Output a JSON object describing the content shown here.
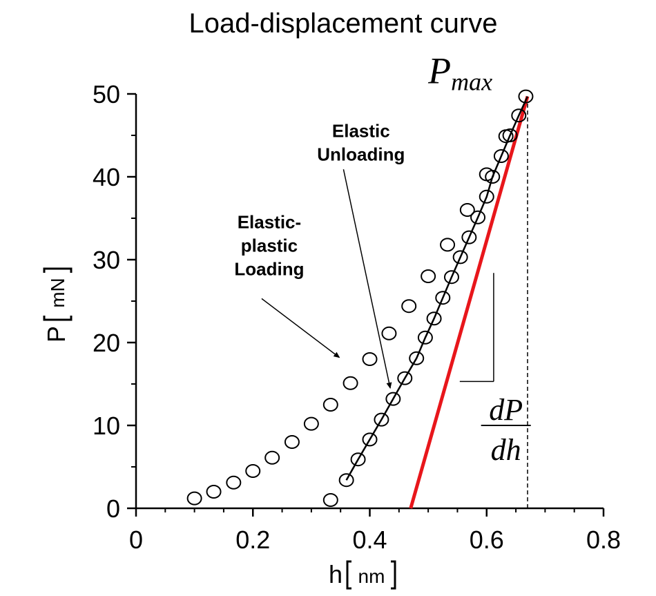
{
  "chart_data": {
    "type": "scatter",
    "title": "Load-displacement curve",
    "xlabel": {
      "symbol": "h",
      "unit": "nm"
    },
    "ylabel": {
      "symbol": "P",
      "unit": "mN"
    },
    "xlim": [
      0,
      0.8
    ],
    "ylim": [
      0,
      50
    ],
    "xticks": [
      0,
      0.2,
      0.4,
      0.6,
      0.8
    ],
    "xtick_labels": [
      "0",
      "0.2",
      "0.4",
      "0.6",
      "0.8"
    ],
    "yticks": [
      0,
      10,
      20,
      30,
      40,
      50
    ],
    "ytick_labels": [
      "0",
      "10",
      "20",
      "30",
      "40",
      "50"
    ],
    "grid": false,
    "series": [
      {
        "marker": "open-circle",
        "points": [
          [
            0.1,
            1.2
          ],
          [
            0.133,
            2.0
          ],
          [
            0.167,
            3.1
          ],
          [
            0.2,
            4.5
          ],
          [
            0.233,
            6.1
          ],
          [
            0.267,
            8.0
          ],
          [
            0.3,
            10.2
          ],
          [
            0.333,
            12.5
          ],
          [
            0.367,
            15.1
          ],
          [
            0.4,
            18.0
          ],
          [
            0.433,
            21.1
          ],
          [
            0.467,
            24.4
          ],
          [
            0.5,
            28.0
          ],
          [
            0.533,
            31.8
          ],
          [
            0.567,
            36.0
          ],
          [
            0.6,
            40.3
          ],
          [
            0.633,
            44.9
          ],
          [
            0.667,
            49.7
          ],
          [
            0.333,
            1.0
          ],
          [
            0.36,
            3.4
          ],
          [
            0.38,
            5.9
          ],
          [
            0.4,
            8.3
          ],
          [
            0.42,
            10.7
          ],
          [
            0.44,
            13.2
          ],
          [
            0.46,
            15.7
          ],
          [
            0.48,
            18.1
          ],
          [
            0.495,
            20.6
          ],
          [
            0.51,
            22.9
          ],
          [
            0.525,
            25.4
          ],
          [
            0.54,
            27.9
          ],
          [
            0.555,
            30.3
          ],
          [
            0.57,
            32.7
          ],
          [
            0.585,
            35.1
          ],
          [
            0.6,
            37.6
          ],
          [
            0.61,
            40.0
          ],
          [
            0.625,
            42.5
          ],
          [
            0.64,
            45.0
          ],
          [
            0.655,
            47.4
          ]
        ]
      },
      {
        "style": "black-line",
        "points": [
          [
            0.36,
            3.4
          ],
          [
            0.38,
            5.9
          ],
          [
            0.4,
            8.3
          ],
          [
            0.42,
            10.7
          ],
          [
            0.44,
            13.2
          ],
          [
            0.46,
            15.7
          ],
          [
            0.48,
            18.1
          ],
          [
            0.495,
            20.6
          ],
          [
            0.51,
            22.9
          ],
          [
            0.525,
            25.4
          ],
          [
            0.54,
            27.9
          ],
          [
            0.555,
            30.3
          ],
          [
            0.57,
            32.7
          ],
          [
            0.585,
            35.1
          ],
          [
            0.6,
            37.6
          ],
          [
            0.61,
            40.0
          ],
          [
            0.625,
            42.5
          ],
          [
            0.64,
            45.0
          ],
          [
            0.655,
            47.4
          ],
          [
            0.67,
            49.7
          ]
        ]
      },
      {
        "style": "red-tangent-line",
        "color": "#e8161b",
        "points": [
          [
            0.47,
            0
          ],
          [
            0.67,
            49.7
          ]
        ]
      }
    ],
    "reference_lines": [
      {
        "style": "dashed-vertical",
        "x": 0.67,
        "y_from": 0,
        "y_to": 49.7
      }
    ],
    "annotations": {
      "pmax": {
        "base": "P",
        "sub": "max",
        "x": 0.5,
        "y": 51.3
      },
      "elastic_unloading": {
        "lines": [
          "Elastic",
          "Unloading"
        ],
        "x": 0.385,
        "y": 44.8,
        "arrow_from": [
          0.355,
          40.9
        ],
        "arrow_to": [
          0.435,
          14.5
        ]
      },
      "elastic_plastic_loading": {
        "lines": [
          "Elastic-",
          "plastic",
          "Loading"
        ],
        "x": 0.228,
        "y": 33.8,
        "arrow_from": [
          0.215,
          25.3
        ],
        "arrow_to": [
          0.348,
          18.2
        ]
      },
      "slope_marker": {
        "vertical": {
          "x": 0.612,
          "y_from": 28.4,
          "y_to": 15.3
        },
        "horizontal": {
          "y": 15.3,
          "x_from": 0.554,
          "x_to": 0.612
        }
      },
      "slope_label": {
        "numerator": "dP",
        "denominator": "dh",
        "x": 0.633,
        "y": 10.0
      }
    }
  }
}
